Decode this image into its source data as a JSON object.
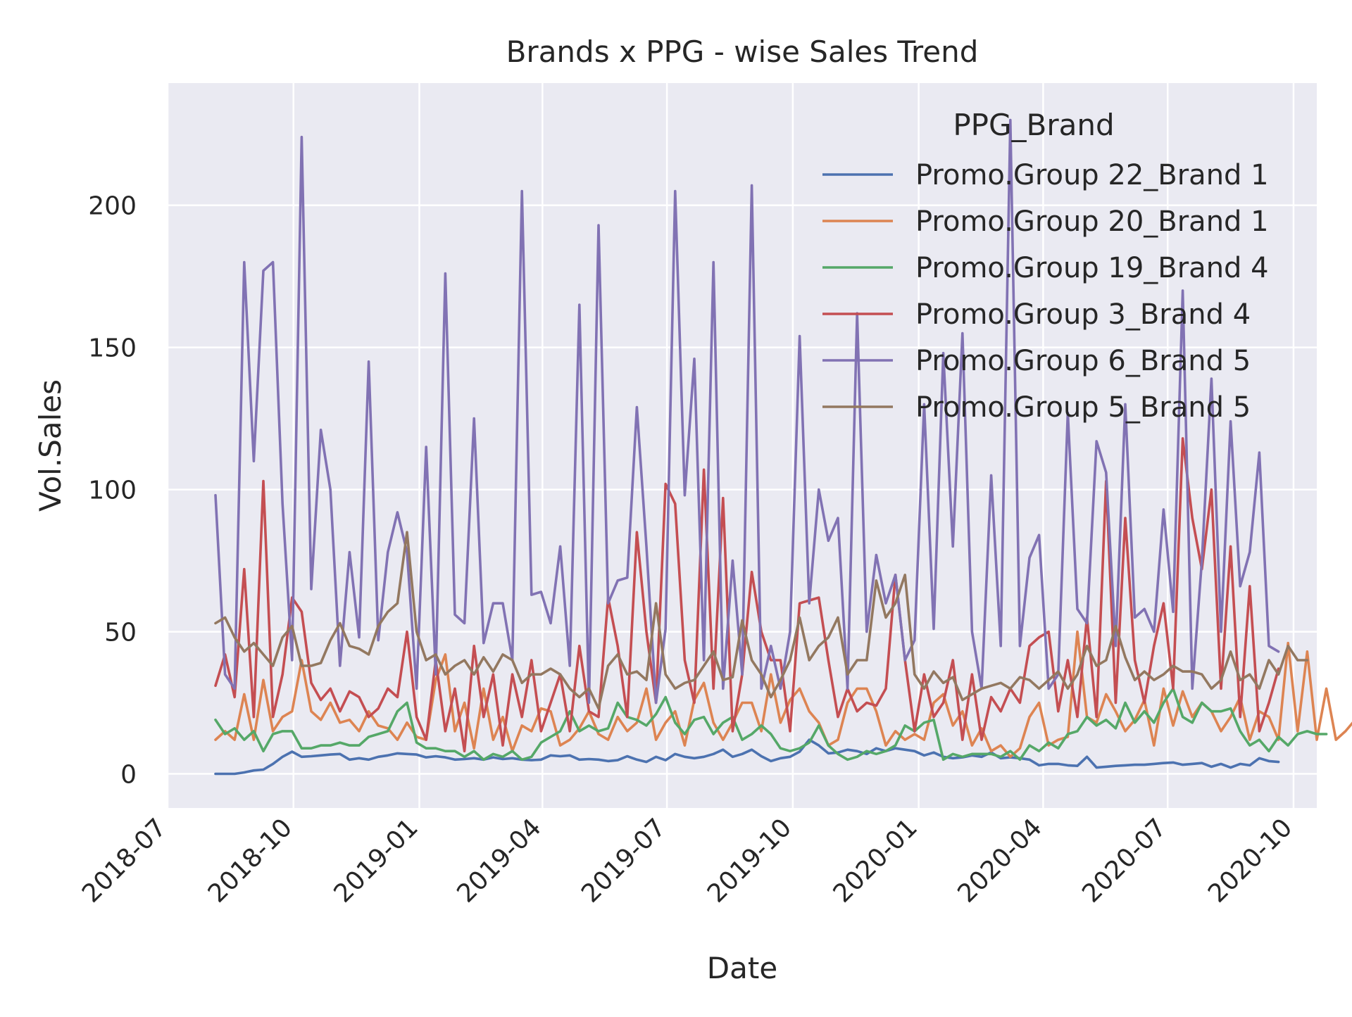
{
  "chart_data": {
    "type": "line",
    "title": "Brands x PPG - wise Sales Trend",
    "xlabel": "Date",
    "ylabel": "Vol.Sales",
    "x_ticks": [
      "2018-07",
      "2018-10",
      "2019-01",
      "2019-04",
      "2019-07",
      "2019-10",
      "2020-01",
      "2020-04",
      "2020-07",
      "2020-10"
    ],
    "y_ticks": [
      0,
      50,
      100,
      150,
      200
    ],
    "ylim": [
      -12,
      243
    ],
    "xlim": [
      "2018-07-01",
      "2020-10-18"
    ],
    "grid": true,
    "legend_title": "PPG_Brand",
    "legend_position": "upper-right",
    "x_start": "2018-08-05",
    "x_step_days": 7,
    "series": [
      {
        "name": "Promo.Group 22_Brand 1",
        "color": "#4c72b0",
        "values": [
          0,
          0,
          0,
          0.5,
          1.2,
          1.5,
          3.5,
          6,
          7.8,
          6,
          6.2,
          6.5,
          6.8,
          7,
          5,
          5.5,
          5,
          6,
          6.5,
          7.2,
          7,
          6.8,
          5.8,
          6.2,
          5.8,
          5,
          5.2,
          5.5,
          5,
          5.8,
          5.2,
          5.5,
          5,
          4.8,
          5,
          6.5,
          6.2,
          6.5,
          5,
          5.2,
          5,
          4.5,
          4.8,
          6.2,
          5,
          4.2,
          6,
          4.8,
          7,
          6,
          5.5,
          6,
          7,
          8.5,
          6,
          7,
          8.5,
          6.2,
          4.5,
          5.5,
          6,
          7.8,
          12,
          10,
          7.2,
          7.5,
          8.5,
          8,
          7,
          9,
          8,
          9,
          8.5,
          8,
          6.5,
          7.5,
          6,
          5.5,
          5.8,
          6.5,
          6,
          7.5,
          5.5,
          5.8,
          5.5,
          5,
          3,
          3.5,
          3.5,
          3,
          2.8,
          6,
          2.2,
          2.5,
          2.8,
          3,
          3.2,
          3.2,
          3.5,
          3.8,
          4,
          3.2,
          3.5,
          3.8,
          2.5,
          3.5,
          2.2,
          3.5,
          3,
          5.5,
          4.5,
          4.2
        ]
      },
      {
        "name": "Promo.Group 20_Brand 1",
        "color": "#dd8452",
        "values": [
          12,
          15,
          12,
          28,
          12,
          33,
          15,
          20,
          22,
          40,
          22,
          19,
          25,
          18,
          19,
          15,
          22,
          17,
          16,
          12,
          18,
          13,
          12,
          33,
          42,
          15,
          25,
          9,
          30,
          12,
          20,
          8,
          17,
          15,
          23,
          22,
          10,
          12,
          16,
          22,
          14,
          12,
          20,
          15,
          18,
          30,
          12,
          18,
          22,
          10,
          26,
          32,
          18,
          12,
          18,
          25,
          25,
          15,
          35,
          18,
          26,
          30,
          22,
          18,
          10,
          12,
          25,
          30,
          30,
          22,
          10,
          15,
          12,
          14,
          12,
          25,
          28,
          17,
          22,
          10,
          16,
          8,
          10,
          6,
          9,
          20,
          25,
          10,
          12,
          13,
          50,
          20,
          18,
          28,
          22,
          15,
          19,
          26,
          10,
          30,
          17,
          29,
          20,
          25,
          22,
          15,
          20,
          27,
          12,
          22,
          20,
          12,
          46,
          15,
          43,
          12,
          30,
          12,
          15,
          19
        ]
      },
      {
        "name": "Promo.Group 19_Brand 4",
        "color": "#55a868",
        "values": [
          19,
          14,
          16,
          12,
          15,
          8,
          14,
          15,
          15,
          9,
          9,
          10,
          10,
          11,
          10,
          10,
          13,
          14,
          15,
          22,
          25,
          11,
          9,
          9,
          8,
          8,
          6,
          8,
          5,
          7,
          6,
          8,
          5,
          6,
          11,
          13,
          15,
          22,
          15,
          17,
          15,
          16,
          25,
          20,
          19,
          17,
          21,
          27,
          18,
          14,
          19,
          20,
          14,
          18,
          20,
          12,
          14,
          17,
          14,
          9,
          8,
          9,
          11,
          17,
          10,
          7,
          5,
          6,
          8,
          7,
          8,
          10,
          17,
          15,
          18,
          19,
          5,
          7,
          6,
          7,
          7,
          7,
          6,
          8,
          5,
          10,
          8,
          11,
          9,
          14,
          15,
          20,
          17,
          19,
          16,
          25,
          18,
          22,
          18,
          25,
          30,
          20,
          18,
          25,
          22,
          22,
          23,
          15,
          10,
          12,
          8,
          13,
          10,
          14,
          15,
          14,
          14
        ]
      },
      {
        "name": "Promo.Group 3_Brand 4",
        "color": "#c44e52",
        "values": [
          31,
          42,
          27,
          72,
          20,
          103,
          20,
          35,
          62,
          57,
          32,
          26,
          30,
          22,
          29,
          27,
          20,
          23,
          30,
          27,
          50,
          20,
          12,
          40,
          15,
          30,
          8,
          45,
          20,
          35,
          10,
          35,
          20,
          40,
          15,
          25,
          35,
          15,
          45,
          22,
          20,
          62,
          45,
          20,
          85,
          50,
          25,
          102,
          95,
          40,
          25,
          107,
          30,
          97,
          15,
          35,
          71,
          50,
          40,
          40,
          15,
          60,
          61,
          62,
          40,
          20,
          30,
          22,
          25,
          24,
          30,
          70,
          40,
          15,
          35,
          20,
          25,
          40,
          12,
          35,
          12,
          27,
          22,
          30,
          25,
          45,
          48,
          50,
          22,
          40,
          20,
          55,
          20,
          103,
          25,
          90,
          40,
          25,
          45,
          60,
          30,
          118,
          90,
          72,
          100,
          30,
          80,
          20,
          66,
          15,
          25,
          37
        ]
      },
      {
        "name": "Promo.Group 6_Brand 5",
        "color": "#8172b3",
        "values": [
          98,
          35,
          30,
          180,
          110,
          177,
          180,
          95,
          40,
          224,
          65,
          121,
          100,
          38,
          78,
          48,
          145,
          47,
          78,
          92,
          78,
          30,
          115,
          35,
          176,
          56,
          53,
          125,
          46,
          60,
          60,
          40,
          205,
          63,
          64,
          53,
          80,
          38,
          165,
          25,
          193,
          60,
          68,
          69,
          129,
          80,
          25,
          51,
          205,
          98,
          146,
          40,
          180,
          30,
          75,
          35,
          207,
          30,
          45,
          30,
          50,
          154,
          60,
          100,
          82,
          90,
          30,
          162,
          50,
          77,
          60,
          70,
          40,
          47,
          130,
          51,
          148,
          80,
          155,
          50,
          30,
          105,
          45,
          230,
          45,
          76,
          84,
          30,
          35,
          127,
          58,
          53,
          117,
          106,
          45,
          130,
          55,
          58,
          50,
          93,
          57,
          170,
          30,
          75,
          139,
          50,
          124,
          66,
          78,
          113,
          45,
          43
        ]
      },
      {
        "name": "Promo.Group 5_Brand 5",
        "color": "#937860",
        "values": [
          53,
          55,
          48,
          43,
          46,
          42,
          38,
          48,
          52,
          38,
          38,
          39,
          47,
          53,
          45,
          44,
          42,
          52,
          57,
          60,
          85,
          50,
          40,
          42,
          35,
          38,
          40,
          35,
          41,
          36,
          42,
          40,
          32,
          35,
          35,
          37,
          35,
          30,
          27,
          30,
          23,
          38,
          42,
          35,
          36,
          33,
          60,
          35,
          30,
          32,
          33,
          38,
          43,
          33,
          34,
          54,
          40,
          35,
          27,
          33,
          40,
          55,
          40,
          45,
          48,
          55,
          35,
          40,
          40,
          68,
          55,
          60,
          70,
          35,
          30,
          36,
          32,
          34,
          26,
          28,
          30,
          31,
          32,
          30,
          34,
          33,
          30,
          33,
          36,
          30,
          35,
          45,
          38,
          40,
          52,
          41,
          33,
          36,
          33,
          35,
          38,
          36,
          36,
          35,
          30,
          33,
          43,
          33,
          35,
          30,
          40,
          35,
          45,
          40,
          40
        ]
      }
    ]
  }
}
